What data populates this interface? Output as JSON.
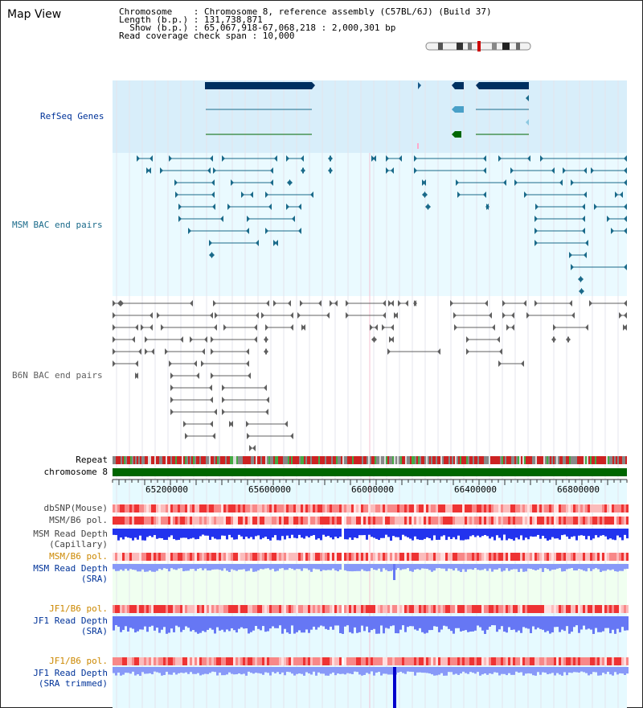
{
  "title": "Map View",
  "info": {
    "line1": "Chromosome    : Chromosome 8, reference assembly (C57BL/6J) (Build 37)",
    "line2": "Length (b.p.) : 131,738,871",
    "line3": "  Show (b.p.) : 65,067,918-67,068,218 : 2,000,301 bp",
    "line4": "Read coverage check span : 10,000"
  },
  "tracks": {
    "refseq": "RefSeq Genes",
    "msm_bac": "MSM BAC end pairs",
    "b6n_bac": "B6N BAC end pairs",
    "repeat": "Repeat",
    "chromosome": "chromosome 8",
    "dbsnp": "dbSNP(Mouse)",
    "msm_b6_pol": "MSM/B6 pol.",
    "msm_read_depth_cap_1": "MSM Read Depth",
    "msm_read_depth_cap_2": "(Capillary)",
    "msm_b6_pol_2": "MSM/B6 pol.",
    "msm_read_depth_sra_1": "MSM Read Depth",
    "msm_read_depth_sra_2": "(SRA)",
    "jf1_b6_pol": "JF1/B6 pol.",
    "jf1_read_depth_1": "JF1 Read Depth",
    "jf1_read_depth_2": "(SRA)",
    "jf1_b6_pol_2": "JF1/B6 pol.",
    "jf1_trim_1": "JF1 Read Depth",
    "jf1_trim_2": "(SRA trimmed)"
  },
  "axis": {
    "ticks": [
      "65200000",
      "65600000",
      "66000000",
      "66400000",
      "66800000"
    ]
  },
  "colors": {
    "refseq_bg": "#d8eefa",
    "msm_bg": "#eafaff",
    "gene_dark": "#003060",
    "msm_pair": "#1a6a8a",
    "b6n_pair": "#606060",
    "chrom_green": "#006600",
    "label_blue": "#003399",
    "label_orange": "#cc8800"
  }
}
